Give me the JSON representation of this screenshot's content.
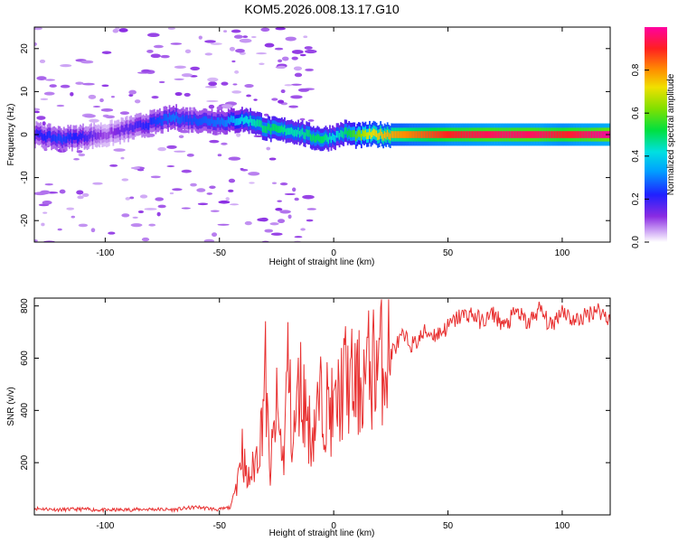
{
  "title": "KOM5.2026.008.13.17.G10",
  "colors": {
    "snr_line": "#e83030",
    "axis": "#000000",
    "background": "#ffffff"
  },
  "chart_data": [
    {
      "type": "heatmap",
      "name": "spectrogram",
      "xlabel": "Height of straight line (km)",
      "ylabel": "Frequency (Hz)",
      "xlim": [
        -131,
        121
      ],
      "ylim": [
        -25,
        25
      ],
      "x_ticks": [
        -100,
        -50,
        0,
        50,
        100
      ],
      "x_tick_labels": [
        "-100",
        "-50",
        "0",
        "50",
        "100"
      ],
      "y_ticks": [
        -20,
        -10,
        0,
        10,
        20
      ],
      "y_tick_labels": [
        "-20",
        "-10",
        "0",
        "10",
        "20"
      ],
      "colorbar": {
        "label": "Normalized spectral amplitude",
        "range": [
          0,
          1
        ],
        "ticks": [
          0.0,
          0.2,
          0.4,
          0.6,
          0.8
        ],
        "tick_labels": [
          "0.0",
          "0.2",
          "0.4",
          "0.6",
          "0.8"
        ],
        "colormap": "rainbow (white-violet-blue-cyan-green-yellow-orange-red-magenta)"
      },
      "ridge": {
        "description": "Dominant spectral ridge frequency vs height",
        "x": [
          -131,
          -120,
          -110,
          -100,
          -70,
          -65,
          -48,
          -40,
          -35,
          -30,
          -25,
          -20,
          -15,
          -10,
          -5,
          0,
          5,
          10,
          15,
          20,
          30,
          50,
          70,
          90,
          100,
          110,
          121
        ],
        "y": [
          0,
          -1,
          -0.5,
          0,
          4,
          3.5,
          3,
          3.5,
          3,
          1.5,
          1,
          1,
          0.5,
          -0.5,
          -1,
          -0.5,
          0.5,
          -0.3,
          0,
          0,
          0,
          0,
          0,
          0,
          0,
          0,
          0
        ],
        "amplitude": [
          0.2,
          0.25,
          0.2,
          0.1,
          0.3,
          0.25,
          0.3,
          0.4,
          0.45,
          0.5,
          0.5,
          0.45,
          0.45,
          0.5,
          0.5,
          0.4,
          0.5,
          0.6,
          0.7,
          0.75,
          0.8,
          0.9,
          0.95,
          0.95,
          0.9,
          0.95,
          1.0
        ]
      }
    },
    {
      "type": "line",
      "name": "snr",
      "xlabel": "Height of straight line (km)",
      "ylabel": "SNR (v/v)",
      "xlim": [
        -131,
        121
      ],
      "ylim": [
        0,
        830
      ],
      "x_ticks": [
        -100,
        -50,
        0,
        50,
        100
      ],
      "x_tick_labels": [
        "-100",
        "-50",
        "0",
        "50",
        "100"
      ],
      "y_ticks": [
        200,
        400,
        600,
        800
      ],
      "y_tick_labels": [
        "200",
        "400",
        "600",
        "800"
      ],
      "series": [
        {
          "name": "SNR",
          "x": [
            -131,
            -120,
            -110,
            -100,
            -90,
            -80,
            -70,
            -60,
            -50,
            -45,
            -42,
            -40,
            -38,
            -35,
            -32,
            -30,
            -28,
            -25,
            -22,
            -20,
            -18,
            -15,
            -12,
            -10,
            -5,
            0,
            5,
            10,
            15,
            20,
            25,
            30,
            35,
            40,
            45,
            50,
            55,
            60,
            65,
            70,
            75,
            80,
            85,
            90,
            95,
            100,
            105,
            110,
            115,
            121
          ],
          "values": [
            25,
            20,
            22,
            18,
            20,
            22,
            20,
            30,
            20,
            30,
            150,
            260,
            120,
            180,
            300,
            560,
            150,
            400,
            200,
            600,
            250,
            500,
            400,
            300,
            450,
            380,
            520,
            480,
            550,
            600,
            620,
            680,
            650,
            700,
            690,
            720,
            760,
            770,
            740,
            770,
            720,
            780,
            730,
            790,
            720,
            790,
            740,
            760,
            790,
            750
          ]
        }
      ]
    }
  ]
}
